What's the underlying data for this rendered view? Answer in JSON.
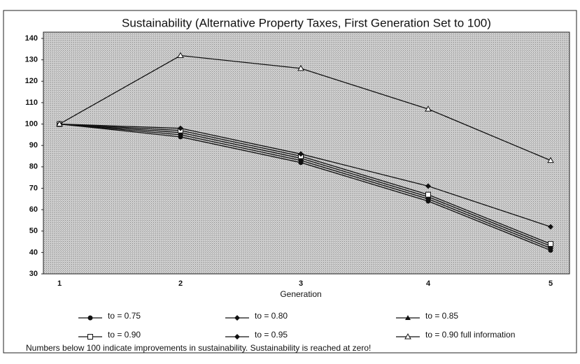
{
  "chart_data": {
    "type": "line",
    "title": "Sustainability  (Alternative Property Taxes, First Generation Set to 100)",
    "x_label": "Generation",
    "categories": [
      "1",
      "2",
      "3",
      "4",
      "5"
    ],
    "ylim": [
      30,
      140
    ],
    "yticks": [
      30,
      40,
      50,
      60,
      70,
      80,
      90,
      100,
      110,
      120,
      130,
      140
    ],
    "series": [
      {
        "name": "to = 0.75",
        "color": "#111111",
        "marker": "circle",
        "values": [
          100,
          94,
          82,
          64,
          41
        ]
      },
      {
        "name": "to = 0.80",
        "color": "#111111",
        "marker": "diamond",
        "values": [
          100,
          95,
          83,
          65,
          42
        ]
      },
      {
        "name": "to = 0.85",
        "color": "#111111",
        "marker": "triangle",
        "values": [
          100,
          96,
          84,
          66,
          43
        ]
      },
      {
        "name": "to = 0.90",
        "color": "#111111",
        "marker": "square",
        "values": [
          100,
          97,
          85,
          67,
          44
        ]
      },
      {
        "name": "to = 0.95",
        "color": "#111111",
        "marker": "diamond",
        "values": [
          100,
          98,
          86,
          71,
          52
        ]
      },
      {
        "name": "to = 0.90 full information",
        "color": "#111111",
        "marker": "open-triangle",
        "values": [
          100,
          132,
          126,
          107,
          83
        ]
      }
    ],
    "note": "Numbers below 100 indicate improvements in sustainability. Sustainability is reached at zero!"
  }
}
